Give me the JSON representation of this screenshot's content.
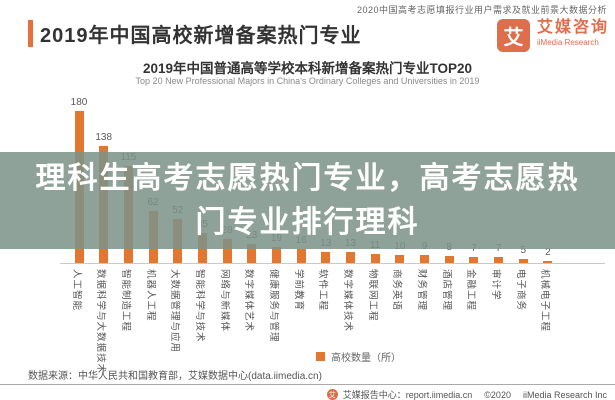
{
  "header": {
    "report_topline": "2020中国高考志愿填报行业用户需求及就业前景大数据分析",
    "page_title": "2019年中国高校新增备案热门专业",
    "logo_mark": "艾",
    "logo_name_cn": "艾媒咨询",
    "logo_name_en": "iiMedia Research"
  },
  "overlay": {
    "line1": "理科生高考志愿热门专业，高考志愿热",
    "line2": "门专业排行理科"
  },
  "chart_data": {
    "type": "bar",
    "title": "2019年中国普通高等学校本科新增备案热门专业TOP20",
    "subtitle_en": "Top 20 New Professional Majors in China's Ordinary Colleges and Universities in 2019",
    "legend": "高校数量（所）",
    "legend_position": "bottom",
    "grid": false,
    "ylim": [
      0,
      180
    ],
    "categories": [
      "人工智能",
      "数据科学与大数据技术",
      "智能制造工程",
      "机器人工程",
      "大数据管理与应用",
      "智能科学与技术",
      "网络与新媒体",
      "数字媒体艺术",
      "健康服务与管理",
      "学前教育",
      "软件工程",
      "数字媒体技术",
      "物联网工程",
      "商务英语",
      "财务管理",
      "酒店管理",
      "金融工程",
      "审计学",
      "电子商务",
      "机械电子工程"
    ],
    "values": [
      180,
      138,
      115,
      62,
      52,
      35,
      28,
      23,
      19,
      16,
      13,
      13,
      11,
      10,
      9,
      8,
      7,
      7,
      5,
      2
    ],
    "bar_color": "#E2772F"
  },
  "footer": {
    "source": "数据来源：中华人民共和国教育部，艾媒数据中心(data.iimedia.cn)",
    "report_center": "艾媒报告中心：report.iimedia.cn",
    "copyright": "©2020",
    "company": "iiMedia Research Inc",
    "footer_logo_mark": "艾"
  },
  "colors": {
    "accent": "#E4703C",
    "brand": "#DE6E4C",
    "bar": "#E2772F",
    "overlay_band": "rgba(122,146,135,0.85)"
  }
}
